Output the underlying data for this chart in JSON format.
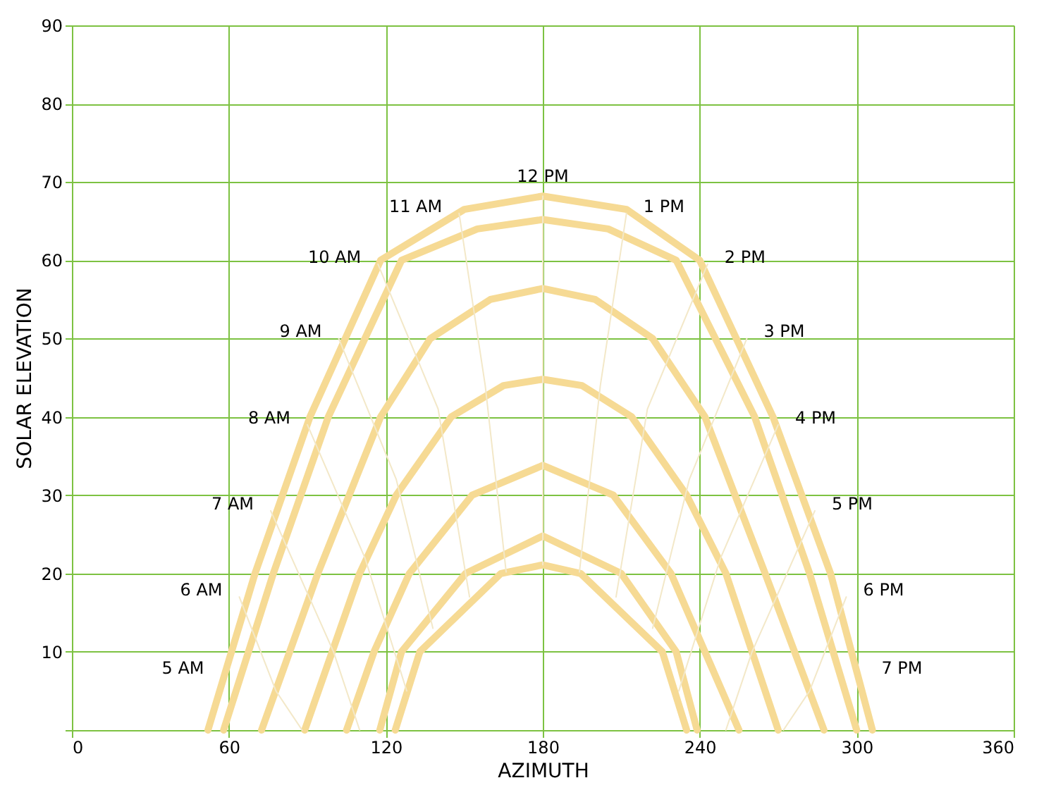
{
  "chart_data": {
    "type": "line",
    "xlabel": "AZIMUTH",
    "ylabel": "SOLAR ELEVATION",
    "xlim": [
      0,
      360
    ],
    "xticks": [
      0,
      60,
      120,
      180,
      240,
      300,
      360
    ],
    "ylim": [
      0,
      90
    ],
    "yticks": [
      {
        "value": 0,
        "label": null
      },
      10,
      20,
      30,
      40,
      50,
      60,
      70,
      80,
      90
    ],
    "grid": true,
    "marker": "none",
    "line_style": "solid",
    "series": [
      {
        "color": "#f6da94",
        "x": [
          52,
          70,
          91,
          118,
          150,
          180,
          212,
          240,
          268,
          290,
          306
        ],
        "values": [
          0,
          20,
          40,
          60,
          66.5,
          68.2,
          66.5,
          60,
          40,
          20,
          0
        ]
      },
      {
        "color": "#f6da94",
        "x": [
          58,
          77,
          98,
          126,
          155,
          180,
          205,
          231,
          261,
          282,
          300
        ],
        "values": [
          0,
          20,
          40,
          60,
          64,
          65.2,
          64,
          60,
          40,
          20,
          0
        ]
      },
      {
        "color": "#f6da94",
        "x": [
          72.5,
          94,
          118,
          137,
          160,
          180,
          200,
          222,
          242,
          265,
          287.5
        ],
        "values": [
          0,
          20,
          40,
          50,
          55,
          56.4,
          55,
          50,
          40,
          20,
          0
        ]
      },
      {
        "color": "#f6da94",
        "x": [
          89,
          110,
          124,
          145,
          165,
          180,
          195,
          214,
          235,
          250,
          270
        ],
        "values": [
          0,
          20,
          30,
          40,
          44,
          44.8,
          44,
          40,
          30,
          20,
          0
        ]
      },
      {
        "color": "#f6da94",
        "x": [
          105,
          115.5,
          129,
          153,
          180,
          207,
          229,
          242,
          255
        ],
        "values": [
          0,
          10,
          20,
          30,
          33.8,
          30,
          20,
          10,
          0
        ]
      },
      {
        "color": "#f6da94",
        "x": [
          117.7,
          126,
          150.5,
          180,
          210,
          231,
          239
        ],
        "values": [
          0,
          10,
          20,
          24.8,
          20,
          10,
          0
        ]
      },
      {
        "color": "#f6da94",
        "x": [
          123.6,
          133,
          164,
          180,
          194.5,
          225.7,
          235
        ],
        "values": [
          0,
          10,
          20,
          21.1,
          20,
          10,
          0
        ]
      },
      {
        "color": "#f3e8c8",
        "x": [
          64,
          78,
          88
        ],
        "values": [
          17,
          5,
          0
        ]
      },
      {
        "color": "#f3e8c8",
        "x": [
          76,
          100,
          110
        ],
        "values": [
          28,
          10,
          0
        ]
      },
      {
        "color": "#f3e8c8",
        "x": [
          90,
          112,
          128
        ],
        "values": [
          39,
          22,
          5
        ]
      },
      {
        "color": "#f3e8c8",
        "x": [
          102,
          124,
          138
        ],
        "values": [
          50,
          32,
          13
        ]
      },
      {
        "color": "#f3e8c8",
        "x": [
          117,
          140,
          152
        ],
        "values": [
          59.5,
          41,
          17
        ]
      },
      {
        "color": "#f3e8c8",
        "x": [
          148,
          158,
          166
        ],
        "values": [
          66,
          44,
          20.2
        ]
      },
      {
        "color": "#f3e8c8",
        "x": [
          180,
          180
        ],
        "values": [
          68.2,
          21.1
        ]
      },
      {
        "color": "#f3e8c8",
        "x": [
          212,
          202,
          194
        ],
        "values": [
          66,
          44,
          20.2
        ]
      },
      {
        "color": "#f3e8c8",
        "x": [
          243,
          220,
          208
        ],
        "values": [
          59.5,
          41,
          17
        ]
      },
      {
        "color": "#f3e8c8",
        "x": [
          258,
          236,
          222
        ],
        "values": [
          50,
          32,
          13
        ]
      },
      {
        "color": "#f3e8c8",
        "x": [
          270,
          248,
          232
        ],
        "values": [
          39,
          22,
          5
        ]
      },
      {
        "color": "#f3e8c8",
        "x": [
          284,
          260,
          250
        ],
        "values": [
          28,
          10,
          0
        ]
      },
      {
        "color": "#f3e8c8",
        "x": [
          296,
          282,
          272
        ],
        "values": [
          17,
          5,
          0
        ]
      }
    ],
    "annotations": [
      {
        "text": "5 AM",
        "x": 57,
        "y": 7
      },
      {
        "text": "6 AM",
        "x": 64,
        "y": 17
      },
      {
        "text": "7 AM",
        "x": 76,
        "y": 28
      },
      {
        "text": "8 AM",
        "x": 90,
        "y": 39
      },
      {
        "text": "9 AM",
        "x": 102,
        "y": 50
      },
      {
        "text": "10 AM",
        "x": 117,
        "y": 59.5
      },
      {
        "text": "11 AM",
        "x": 148,
        "y": 66
      },
      {
        "text": "12 PM",
        "x": 180,
        "y": 68.2
      },
      {
        "text": "1 PM",
        "x": 212,
        "y": 66
      },
      {
        "text": "2 PM",
        "x": 243,
        "y": 59.5
      },
      {
        "text": "3 PM",
        "x": 258,
        "y": 50
      },
      {
        "text": "4 PM",
        "x": 270,
        "y": 39
      },
      {
        "text": "5 PM",
        "x": 284,
        "y": 28
      },
      {
        "text": "6 PM",
        "x": 296,
        "y": 17
      },
      {
        "text": "7 PM",
        "x": 303,
        "y": 7
      }
    ]
  }
}
